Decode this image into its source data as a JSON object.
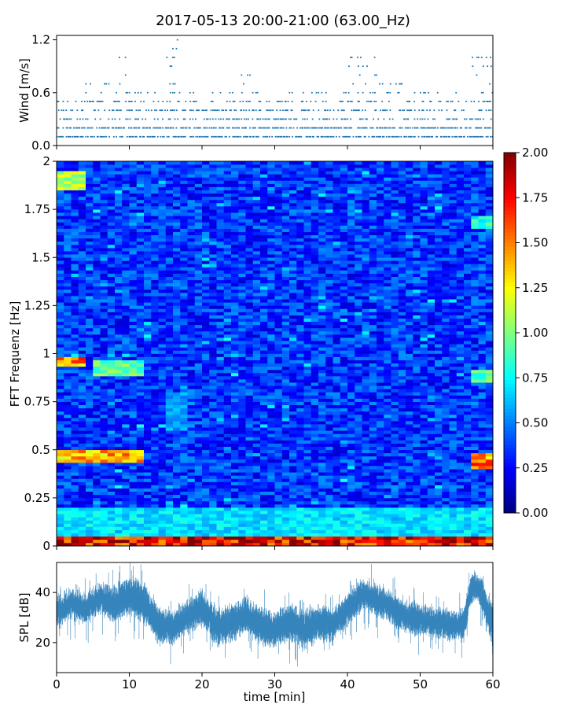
{
  "title": "2017-05-13 20:00-21:00 (63.00_Hz)",
  "chart_data": [
    {
      "type": "scatter",
      "ylabel": "Wind [m/s]",
      "xlabel": "",
      "xlim": [
        0,
        60
      ],
      "ylim": [
        0,
        1.25
      ],
      "yticks": [
        0.0,
        0.6,
        1.2
      ],
      "ytick_labels": [
        "0.0",
        "0.6",
        "1.2"
      ],
      "grid": false,
      "marker_color": "#1f77b4",
      "y_levels_observed": [
        0.1,
        0.2,
        0.3,
        0.4,
        0.5,
        0.6,
        0.7,
        0.8,
        0.9,
        1.0,
        1.1,
        1.2
      ],
      "segments": [
        {
          "x": [
            0,
            4
          ],
          "max": 0.5
        },
        {
          "x": [
            4,
            8
          ],
          "max": 0.7
        },
        {
          "x": [
            8,
            10
          ],
          "max": 1.0
        },
        {
          "x": [
            10,
            15
          ],
          "max": 0.6
        },
        {
          "x": [
            15,
            17
          ],
          "max": 1.2
        },
        {
          "x": [
            17,
            25
          ],
          "max": 0.6
        },
        {
          "x": [
            25,
            27
          ],
          "max": 0.8
        },
        {
          "x": [
            27,
            40
          ],
          "max": 0.6
        },
        {
          "x": [
            40,
            44
          ],
          "max": 1.0
        },
        {
          "x": [
            44,
            50
          ],
          "max": 0.7
        },
        {
          "x": [
            50,
            57
          ],
          "max": 0.6
        },
        {
          "x": [
            57,
            60
          ],
          "max": 1.0
        }
      ]
    },
    {
      "type": "heatmap",
      "xlabel": "",
      "ylabel": "FFT Frequenz [Hz]",
      "xlim": [
        0,
        60
      ],
      "ylim": [
        0,
        2
      ],
      "yticks": [
        0,
        0.25,
        0.5,
        0.75,
        1,
        1.25,
        1.5,
        1.75,
        2
      ],
      "ytick_labels": [
        "0",
        "0.25",
        "0.5",
        "0.75",
        "1",
        "1.25",
        "1.5",
        "1.75",
        "2"
      ],
      "colormap": "jet",
      "color_range": [
        0,
        2
      ],
      "colorbar_ticks": [
        "0.00",
        "0.25",
        "0.50",
        "0.75",
        "1.00",
        "1.25",
        "1.50",
        "1.75",
        "2.00"
      ],
      "background_level": 0.35,
      "features": [
        {
          "x": [
            0,
            60
          ],
          "freq": [
            0,
            0.05
          ],
          "value": 1.9
        },
        {
          "x": [
            0,
            60
          ],
          "freq": [
            0.05,
            0.2
          ],
          "value": 0.75
        },
        {
          "x": [
            0,
            12
          ],
          "freq": [
            0.44,
            0.5
          ],
          "value": 1.5
        },
        {
          "x": [
            57,
            60
          ],
          "freq": [
            0.4,
            0.48
          ],
          "value": 1.6
        },
        {
          "x": [
            0,
            4
          ],
          "freq": [
            0.93,
            0.98
          ],
          "value": 1.6
        },
        {
          "x": [
            5,
            12
          ],
          "freq": [
            0.88,
            0.97
          ],
          "value": 1.0
        },
        {
          "x": [
            57,
            60
          ],
          "freq": [
            0.85,
            0.92
          ],
          "value": 1.0
        },
        {
          "x": [
            0,
            4
          ],
          "freq": [
            1.85,
            1.95
          ],
          "value": 1.2
        },
        {
          "x": [
            15,
            18
          ],
          "freq": [
            0.6,
            0.8
          ],
          "value": 0.6
        },
        {
          "x": [
            57,
            60
          ],
          "freq": [
            1.65,
            1.72
          ],
          "value": 0.9
        }
      ]
    },
    {
      "type": "area",
      "xlabel": "time [min]",
      "ylabel": "SPL [dB]",
      "xlim": [
        0,
        60
      ],
      "ylim": [
        8,
        52
      ],
      "yticks": [
        20,
        40
      ],
      "ytick_labels": [
        "20",
        "40"
      ],
      "xticks": [
        0,
        10,
        20,
        30,
        40,
        50,
        60
      ],
      "xtick_labels": [
        "0",
        "10",
        "20",
        "30",
        "40",
        "50",
        "60"
      ],
      "grid": false,
      "color": "#1f77b4",
      "envelope": {
        "x": [
          0,
          2,
          4,
          6,
          8,
          10,
          12,
          14,
          16,
          18,
          20,
          22,
          24,
          26,
          28,
          30,
          32,
          34,
          36,
          38,
          40,
          42,
          44,
          46,
          48,
          50,
          52,
          54,
          56,
          57,
          58,
          60
        ],
        "center": [
          32,
          36,
          33,
          38,
          35,
          39,
          36,
          27,
          26,
          30,
          34,
          26,
          28,
          31,
          27,
          25,
          28,
          25,
          28,
          27,
          33,
          39,
          37,
          34,
          30,
          29,
          28,
          27,
          27,
          42,
          42,
          27
        ],
        "spread": [
          5,
          5,
          5,
          5,
          6,
          6,
          7,
          6,
          6,
          5,
          6,
          6,
          6,
          6,
          6,
          6,
          6,
          6,
          6,
          5,
          5,
          5,
          5,
          5,
          5,
          5,
          5,
          5,
          5,
          5,
          5,
          7
        ]
      }
    }
  ]
}
